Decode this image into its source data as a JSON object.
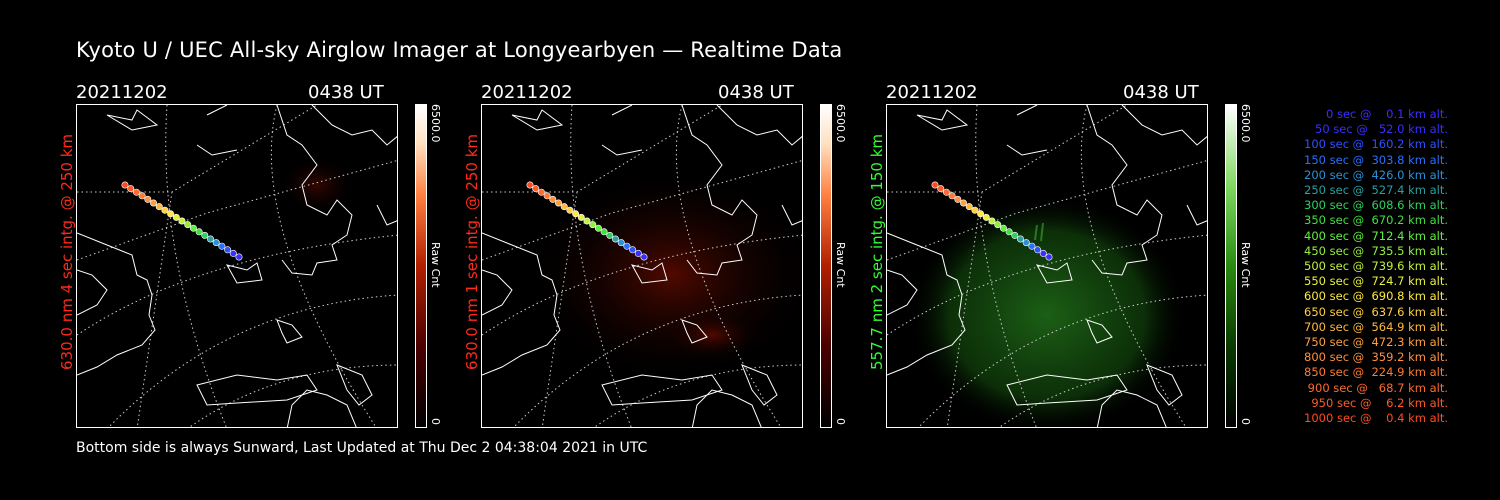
{
  "title": "Kyoto U / UEC All-sky Airglow Imager at Longyearbyen — Realtime Data",
  "footer": "Bottom side is always Sunward, Last Updated at Thu Dec  2 04:38:04 2021 in UTC",
  "colors": {
    "red": "#ff2a1a",
    "green": "#30ff30",
    "bg": "#000000",
    "text": "#ffffff"
  },
  "panels": [
    {
      "date": "20211202",
      "time": "0438 UT",
      "ylabel": "630.0 nm 4 sec intg. @ 250 km",
      "ylabel_color": "#ff2a1a",
      "colorbar_max": "6500.0",
      "colorbar_min": "0",
      "colorbar_label": "Raw Cnt",
      "colormap": "red"
    },
    {
      "date": "20211202",
      "time": "0438 UT",
      "ylabel": "630.0 nm 1 sec intg. @ 250 km",
      "ylabel_color": "#ff2a1a",
      "colorbar_max": "6500.0",
      "colorbar_min": "0",
      "colorbar_label": "Raw Cnt",
      "colormap": "red"
    },
    {
      "date": "20211202",
      "time": "0438 UT",
      "ylabel": "557.7 nm 2 sec intg. @ 150 km",
      "ylabel_color": "#30ff30",
      "colorbar_max": "6500.0",
      "colorbar_min": "0",
      "colorbar_label": "Raw Cnt",
      "colormap": "green"
    }
  ],
  "legend": [
    {
      "text": "   0 sec @    0.1 km alt.",
      "color": "#3a2dff"
    },
    {
      "text": "  50 sec @   52.0 km alt.",
      "color": "#3a2dff"
    },
    {
      "text": " 100 sec @  160.2 km alt.",
      "color": "#2f50ff"
    },
    {
      "text": " 150 sec @  303.8 km alt.",
      "color": "#2a6fff"
    },
    {
      "text": " 200 sec @  426.0 km alt.",
      "color": "#2a90d8"
    },
    {
      "text": " 250 sec @  527.4 km alt.",
      "color": "#2aa0a0"
    },
    {
      "text": " 300 sec @  608.6 km alt.",
      "color": "#30d060"
    },
    {
      "text": " 350 sec @  670.2 km alt.",
      "color": "#40e040"
    },
    {
      "text": " 400 sec @  712.4 km alt.",
      "color": "#60f040"
    },
    {
      "text": " 450 sec @  735.5 km alt.",
      "color": "#90f040"
    },
    {
      "text": " 500 sec @  739.6 km alt.",
      "color": "#c0f040"
    },
    {
      "text": " 550 sec @  724.7 km alt.",
      "color": "#e8f040"
    },
    {
      "text": " 600 sec @  690.8 km alt.",
      "color": "#ffe840"
    },
    {
      "text": " 650 sec @  637.6 km alt.",
      "color": "#ffd040"
    },
    {
      "text": " 700 sec @  564.9 km alt.",
      "color": "#ffb840"
    },
    {
      "text": " 750 sec @  472.3 km alt.",
      "color": "#ffa040"
    },
    {
      "text": " 800 sec @  359.2 km alt.",
      "color": "#ff9040"
    },
    {
      "text": " 850 sec @  224.9 km alt.",
      "color": "#ff7a30"
    },
    {
      "text": " 900 sec @   68.7 km alt.",
      "color": "#ff6a30"
    },
    {
      "text": " 950 sec @    6.2 km alt.",
      "color": "#ff5a28"
    },
    {
      "text": "1000 sec @    0.4 km alt.",
      "color": "#ff4a20"
    }
  ]
}
